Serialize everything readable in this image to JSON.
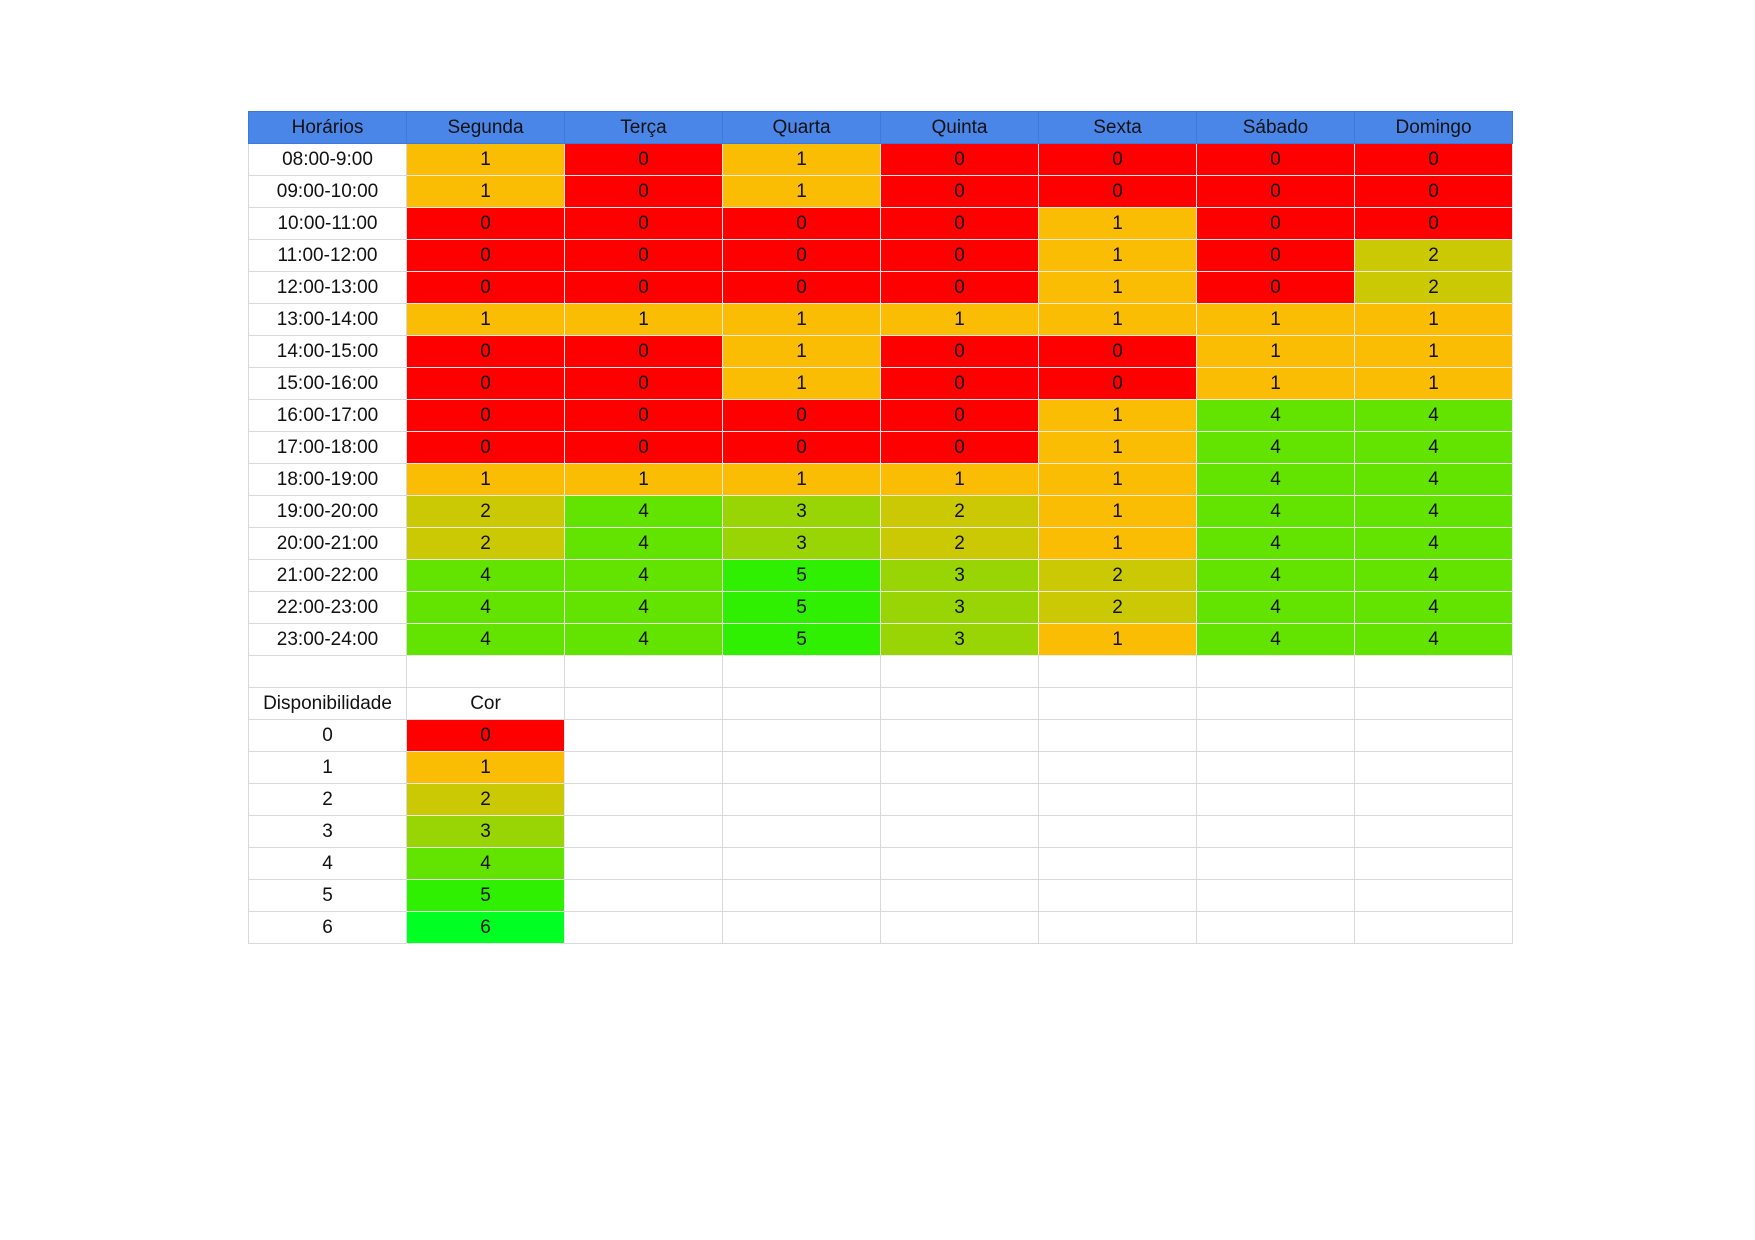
{
  "colors": {
    "header": "#4a86e8",
    "levels": [
      "#ff0000",
      "#fbbc04",
      "#cbc804",
      "#99d404",
      "#62e400",
      "#2ef000",
      "#00ff22"
    ]
  },
  "schedule": {
    "headers": [
      "Horários",
      "Segunda",
      "Terça",
      "Quarta",
      "Quinta",
      "Sexta",
      "Sábado",
      "Domingo"
    ],
    "rows": [
      {
        "time": "08:00-9:00",
        "values": [
          1,
          0,
          1,
          0,
          0,
          0,
          0
        ]
      },
      {
        "time": "09:00-10:00",
        "values": [
          1,
          0,
          1,
          0,
          0,
          0,
          0
        ]
      },
      {
        "time": "10:00-11:00",
        "values": [
          0,
          0,
          0,
          0,
          1,
          0,
          0
        ]
      },
      {
        "time": "11:00-12:00",
        "values": [
          0,
          0,
          0,
          0,
          1,
          0,
          2
        ]
      },
      {
        "time": "12:00-13:00",
        "values": [
          0,
          0,
          0,
          0,
          1,
          0,
          2
        ]
      },
      {
        "time": "13:00-14:00",
        "values": [
          1,
          1,
          1,
          1,
          1,
          1,
          1
        ]
      },
      {
        "time": "14:00-15:00",
        "values": [
          0,
          0,
          1,
          0,
          0,
          1,
          1
        ]
      },
      {
        "time": "15:00-16:00",
        "values": [
          0,
          0,
          1,
          0,
          0,
          1,
          1
        ]
      },
      {
        "time": "16:00-17:00",
        "values": [
          0,
          0,
          0,
          0,
          1,
          4,
          4
        ]
      },
      {
        "time": "17:00-18:00",
        "values": [
          0,
          0,
          0,
          0,
          1,
          4,
          4
        ]
      },
      {
        "time": "18:00-19:00",
        "values": [
          1,
          1,
          1,
          1,
          1,
          4,
          4
        ]
      },
      {
        "time": "19:00-20:00",
        "values": [
          2,
          4,
          3,
          2,
          1,
          4,
          4
        ]
      },
      {
        "time": "20:00-21:00",
        "values": [
          2,
          4,
          3,
          2,
          1,
          4,
          4
        ]
      },
      {
        "time": "21:00-22:00",
        "values": [
          4,
          4,
          5,
          3,
          2,
          4,
          4
        ]
      },
      {
        "time": "22:00-23:00",
        "values": [
          4,
          4,
          5,
          3,
          2,
          4,
          4
        ]
      },
      {
        "time": "23:00-24:00",
        "values": [
          4,
          4,
          5,
          3,
          1,
          4,
          4
        ]
      }
    ]
  },
  "legend": {
    "headers": [
      "Disponibilidade",
      "Cor"
    ],
    "levels": [
      0,
      1,
      2,
      3,
      4,
      5,
      6
    ]
  }
}
